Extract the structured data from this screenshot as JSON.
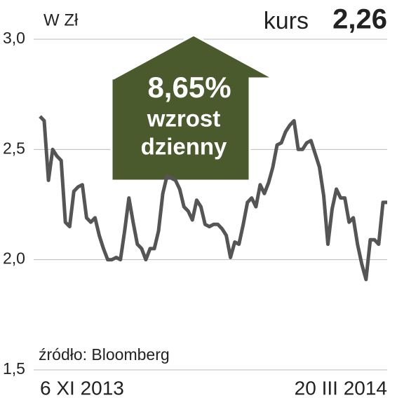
{
  "chart_data": {
    "type": "line",
    "subtitle": "W Zł",
    "title": "kurs",
    "headline_value": "2,26",
    "annotation": {
      "value": "8,65%",
      "line1": "wzrost",
      "line2": "dzienny"
    },
    "source": "źródło: Bloomberg",
    "categories": [
      "6 XI 2013",
      null,
      null,
      null,
      null,
      null,
      null,
      null,
      null,
      null,
      null,
      null,
      null,
      null,
      null,
      null,
      null,
      null,
      null,
      null,
      null,
      null,
      null,
      null,
      null,
      null,
      null,
      null,
      null,
      null,
      null,
      null,
      null,
      null,
      null,
      null,
      null,
      null,
      null,
      null,
      null,
      null,
      null,
      null,
      null,
      null,
      null,
      null,
      null,
      null,
      null,
      null,
      null,
      null,
      null,
      null,
      null,
      null,
      null,
      null,
      null,
      null,
      null,
      null,
      null,
      null,
      null,
      null,
      null,
      null,
      null,
      null,
      null,
      null,
      null,
      null,
      null,
      null,
      null,
      null,
      null,
      null,
      "20 III 2014"
    ],
    "series": [
      {
        "color": "#555555",
        "values": [
          2.65,
          2.63,
          2.36,
          2.5,
          2.47,
          2.45,
          2.17,
          2.15,
          2.31,
          2.33,
          2.34,
          2.19,
          2.17,
          2.19,
          2.11,
          2.05,
          2.0,
          2.0,
          2.01,
          2.0,
          2.13,
          2.28,
          2.17,
          2.07,
          2.05,
          2.0,
          2.05,
          2.05,
          2.13,
          2.3,
          2.38,
          2.37,
          2.36,
          2.32,
          2.24,
          2.22,
          2.18,
          2.27,
          2.24,
          2.16,
          2.15,
          2.16,
          2.16,
          2.14,
          2.11,
          2.01,
          2.08,
          2.07,
          2.16,
          2.26,
          2.28,
          2.24,
          2.34,
          2.3,
          2.35,
          2.42,
          2.52,
          2.53,
          2.58,
          2.61,
          2.63,
          2.5,
          2.5,
          2.53,
          2.54,
          2.48,
          2.42,
          2.29,
          2.07,
          2.23,
          2.32,
          2.28,
          2.28,
          2.17,
          2.19,
          2.07,
          1.98,
          1.91,
          2.09,
          2.09,
          2.07,
          2.26,
          2.26
        ]
      }
    ],
    "ylim": [
      1.5,
      3.0
    ],
    "yticks": [
      {
        "value": 1.5,
        "label": "1,5"
      },
      {
        "value": 2.0,
        "label": "2,0"
      },
      {
        "value": 2.5,
        "label": "2,5"
      },
      {
        "value": 3.0,
        "label": "3,0"
      }
    ],
    "grid": true,
    "arrow_color": "#4b5a2d"
  }
}
